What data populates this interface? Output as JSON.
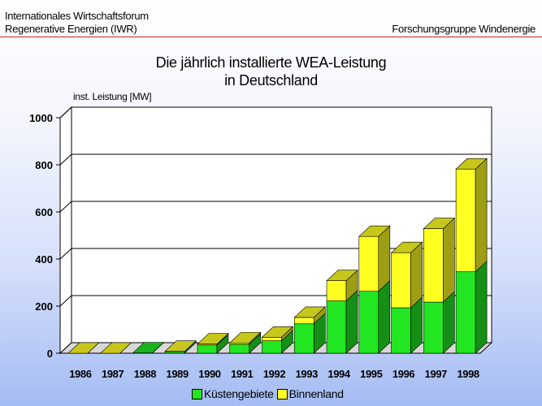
{
  "header": {
    "org_line1": "Internationales Wirtschaftsforum",
    "org_line2": "Regenerative Energien (IWR)",
    "group": "Forschungsgruppe Windenergie"
  },
  "chart_data": {
    "type": "bar",
    "stacked": true,
    "three_d": true,
    "title": "Die jährlich installierte WEA-Leistung",
    "subtitle": "in Deutschland",
    "ylabel": "inst. Leistung [MW]",
    "xlabel": "",
    "ylim": [
      0,
      1000
    ],
    "yticks": [
      0,
      200,
      400,
      600,
      800,
      1000
    ],
    "grid": true,
    "legend_position": "bottom",
    "categories": [
      "1986",
      "1987",
      "1988",
      "1989",
      "1990",
      "1991",
      "1992",
      "1993",
      "1994",
      "1995",
      "1996",
      "1997",
      "1998"
    ],
    "series": [
      {
        "name": "Küstengebiete",
        "color": "#22e622",
        "values": [
          0,
          0,
          1,
          7,
          35,
          38,
          53,
          125,
          222,
          263,
          193,
          217,
          346
        ]
      },
      {
        "name": "Binnenland",
        "color": "#ffff22",
        "values": [
          0,
          0,
          0,
          1,
          4,
          6,
          15,
          27,
          86,
          233,
          234,
          312,
          436
        ]
      }
    ]
  }
}
